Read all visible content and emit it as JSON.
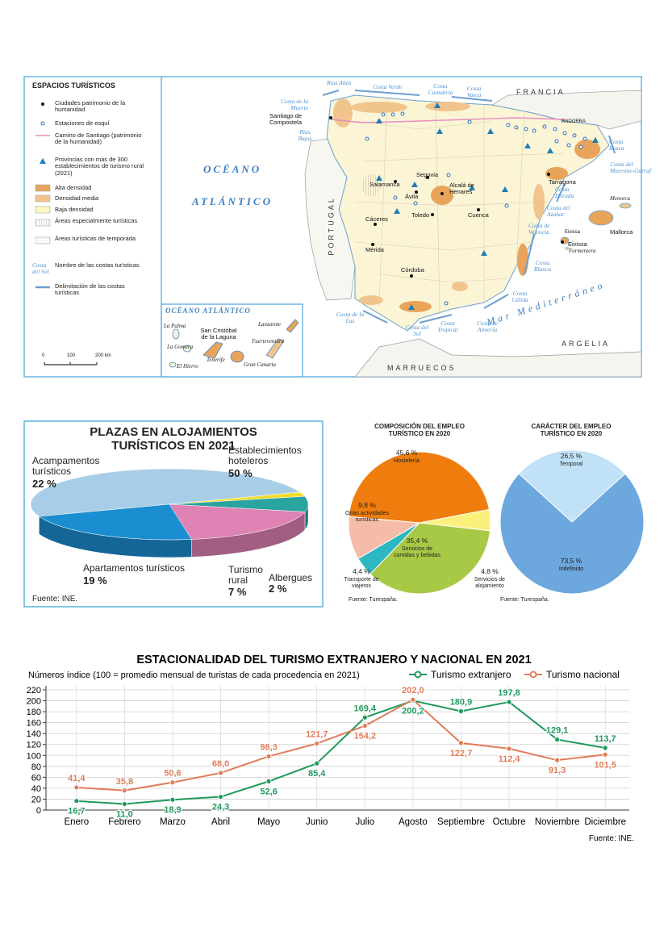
{
  "map": {
    "legend": {
      "title": "ESPACIOS TURÍSTICOS",
      "items": [
        "Ciudades patrimonio de la humanidad",
        "Estaciones de esquí",
        "Camino de Santiago (patrimonio de la humanidad)",
        "Provincias con más de 300 establecimientos de turismo rural (2021)",
        "Alta densidad",
        "Densidad media",
        "Baja densidad",
        "Áreas especialmente turísticas",
        "Áreas turísticas de temporada",
        "Nombre de las costas turísticas",
        "Delimitación de las costas turísticas"
      ],
      "coast_sample": "Costa del Sol"
    },
    "scale": [
      "0",
      "100",
      "200 km"
    ],
    "labels": [
      "Rías Altas",
      "Costa Verde",
      "Costa Cantabria",
      "Costa Vasca",
      "FRANCIA",
      "ANDORRA",
      "Costa de la Muerte",
      "Santiago de Compostela",
      "Rías Bajas",
      "OCÉANO",
      "ATLÁNTICO",
      "PORTUGAL",
      "Salamanca",
      "Segovia",
      "Ávila",
      "Alcalá de Henares",
      "Toledo",
      "Cuenca",
      "Cáceres",
      "Mérida",
      "Córdoba",
      "Tarragona",
      "Costa Brava",
      "Costa del Maresme-Garraf",
      "Costa Dorada",
      "Costa del Azahar",
      "Costa de Valencia",
      "Menorca",
      "Mallorca",
      "Eivissa",
      "Eivissa",
      "Formentera",
      "Costa Cálida",
      "Costa Blanca",
      "Mar Mediterráneo",
      "Costa de Almería",
      "Costa Tropical",
      "Costa del Sol",
      "Costa de la Luz",
      "MARRUECOS",
      "ARGELIA"
    ],
    "inset": {
      "title": "OCÉANO ATLÁNTICO",
      "labels": [
        "La Palma",
        "La Gomera",
        "El Hierro",
        "San Cristóbal de la Laguna",
        "Tenerife",
        "Lanzarote",
        "Fuerteventura",
        "Gran Canaria"
      ]
    }
  },
  "chart_data": [
    {
      "type": "pie",
      "three_d": true,
      "title": "PLAZAS EN ALOJAMIENTOS TURÍSTICOS EN 2021",
      "categories": [
        "Establecimientos hoteleros",
        "Albergues",
        "Turismo rural",
        "Apartamentos turísticos",
        "Acampamentos turísticos"
      ],
      "values": [
        50,
        2,
        7,
        19,
        22
      ],
      "value_labels": [
        "50 %",
        "2 %",
        "7 %",
        "19 %",
        "22 %"
      ],
      "colors": [
        "#a8cde6",
        "#f0dc2c",
        "#2ba39e",
        "#df82b4",
        "#1a8ed0"
      ],
      "source": "Fuente: INE."
    },
    {
      "type": "pie",
      "title": "COMPOSICIÓN DEL EMPLEO TURÍSTICO EN 2020",
      "categories": [
        "Hostelería",
        "Servicios de alojamiento",
        "Servicios de comidas y bebidas",
        "Transporte de viajeros",
        "Otras actividades turísticas"
      ],
      "values": [
        45.6,
        4.8,
        35.4,
        4.4,
        9.8
      ],
      "value_labels": [
        "45,6 %",
        "4,8 %",
        "35,4 %",
        "4,4 %",
        "9,8 %"
      ],
      "colors": [
        "#ee7d0d",
        "#fbf07c",
        "#a7c946",
        "#2db8c1",
        "#f6bcaa"
      ],
      "source": "Fuente: Turespaña."
    },
    {
      "type": "pie",
      "title": "CARÁCTER DEL EMPLEO TURÍSTICO EN 2020",
      "categories": [
        "Temporal",
        "Indefinido"
      ],
      "values": [
        26.5,
        73.5
      ],
      "value_labels": [
        "26,5 %",
        "73,5 %"
      ],
      "colors": [
        "#c0e1f6",
        "#6ca7dd"
      ],
      "source": "Fuente: Turespaña."
    },
    {
      "type": "line",
      "title": "ESTACIONALIDAD DEL TURISMO EXTRANJERO Y NACIONAL EN 2021",
      "subtitle": "Números índice (100 = promedio mensual de turistas de cada procedencia en 2021)",
      "categories": [
        "Enero",
        "Febrero",
        "Marzo",
        "Abril",
        "Mayo",
        "Junio",
        "Julio",
        "Agosto",
        "Septiembre",
        "Octubre",
        "Noviembre",
        "Diciembre"
      ],
      "series": [
        {
          "name": "Turismo extranjero",
          "color": "#1f9a5b",
          "values": [
            16.7,
            11.0,
            18.9,
            24.3,
            52.6,
            85.4,
            169.4,
            200.2,
            180.9,
            197.8,
            129.1,
            113.7
          ],
          "value_labels": [
            "16,7",
            "11,0",
            "18,9",
            "24,3",
            "52,6",
            "85,4",
            "169,4",
            "200,2",
            "180,9",
            "197,8",
            "129,1",
            "113,7"
          ]
        },
        {
          "name": "Turismo nacional",
          "color": "#e07c5b",
          "values": [
            41.4,
            35.8,
            50.6,
            68.0,
            98.3,
            121.7,
            154.2,
            202.0,
            122.7,
            112.4,
            91.3,
            101.5
          ],
          "value_labels": [
            "41,4",
            "35,8",
            "50,6",
            "68,0",
            "98,3",
            "121,7",
            "154,2",
            "202,0",
            "122,7",
            "112,4",
            "91,3",
            "101,5"
          ]
        }
      ],
      "ylim": [
        0,
        220
      ],
      "yticks": [
        0,
        20,
        40,
        60,
        80,
        100,
        120,
        140,
        160,
        180,
        200,
        220
      ],
      "grid": true,
      "source": "Fuente: INE."
    }
  ]
}
